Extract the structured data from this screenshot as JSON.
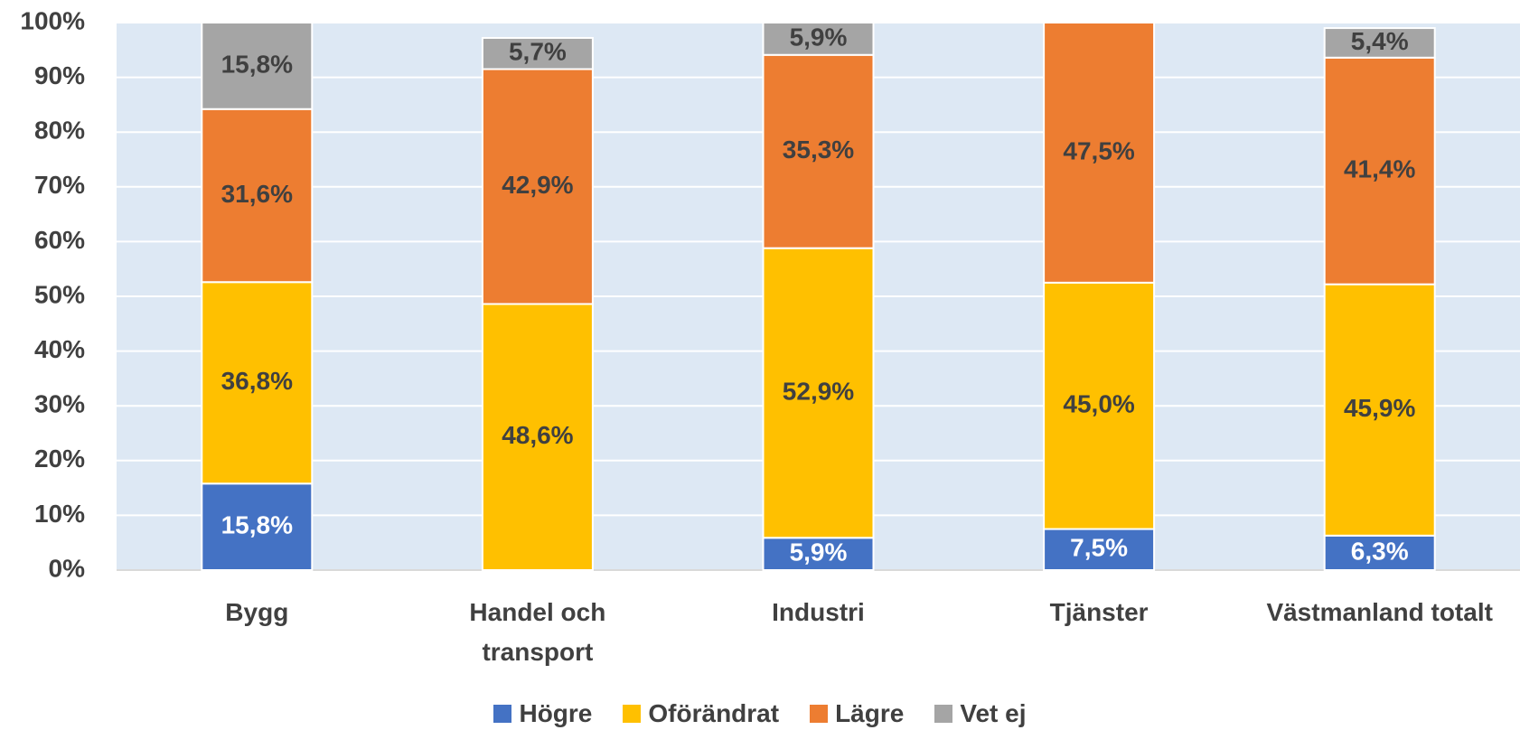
{
  "chart_data": {
    "type": "stacked_bar_100",
    "categories": [
      "Bygg",
      "Handel och\ntransport",
      "Industri",
      "Tjänster",
      "Västmanland totalt"
    ],
    "series": [
      {
        "name": "Högre",
        "color": "#4472c4",
        "label_color": "#ffffff",
        "values": [
          15.8,
          null,
          5.9,
          7.5,
          6.3
        ],
        "value_labels": [
          "15,8%",
          null,
          "5,9%",
          "7,5%",
          "6,3%"
        ]
      },
      {
        "name": "Oförändrat",
        "color": "#ffc000",
        "label_color": "#404040",
        "values": [
          36.8,
          48.6,
          52.9,
          45.0,
          45.9
        ],
        "value_labels": [
          "36,8%",
          "48,6%",
          "52,9%",
          "45,0%",
          "45,9%"
        ]
      },
      {
        "name": "Lägre",
        "color": "#ed7d31",
        "label_color": "#404040",
        "values": [
          31.6,
          42.9,
          35.3,
          47.5,
          41.4
        ],
        "value_labels": [
          "31,6%",
          "42,9%",
          "35,3%",
          "47,5%",
          "41,4%"
        ]
      },
      {
        "name": "Vet ej",
        "color": "#a5a5a5",
        "label_color": "#404040",
        "values": [
          15.8,
          5.7,
          5.9,
          null,
          5.4
        ],
        "value_labels": [
          "15,8%",
          "5,7%",
          "5,9%",
          null,
          "5,4%"
        ]
      }
    ],
    "ylim": [
      0,
      100
    ],
    "yticks": [
      {
        "value": 0,
        "label": "0%"
      },
      {
        "value": 10,
        "label": "10%"
      },
      {
        "value": 20,
        "label": "20%"
      },
      {
        "value": 30,
        "label": "30%"
      },
      {
        "value": 40,
        "label": "40%"
      },
      {
        "value": 50,
        "label": "50%"
      },
      {
        "value": 60,
        "label": "60%"
      },
      {
        "value": 70,
        "label": "70%"
      },
      {
        "value": 80,
        "label": "80%"
      },
      {
        "value": 90,
        "label": "90%"
      },
      {
        "value": 100,
        "label": "100%"
      }
    ],
    "grid": true,
    "plot_background": "#dde8f4",
    "legend": "bottom"
  }
}
